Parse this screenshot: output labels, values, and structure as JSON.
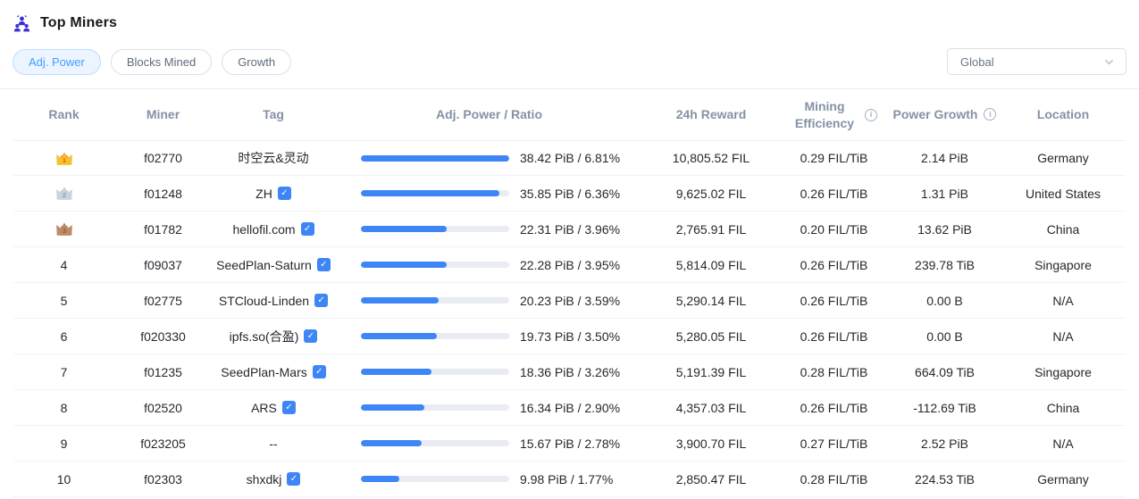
{
  "page": {
    "title": "Top Miners"
  },
  "tabs": [
    {
      "label": "Adj. Power",
      "active": true
    },
    {
      "label": "Blocks Mined",
      "active": false
    },
    {
      "label": "Growth",
      "active": false
    }
  ],
  "region_select": {
    "value": "Global"
  },
  "table": {
    "columns": {
      "rank": "Rank",
      "miner": "Miner",
      "tag": "Tag",
      "power": "Adj. Power / Ratio",
      "reward": "24h Reward",
      "efficiency": "Mining Efficiency",
      "growth": "Power Growth",
      "location": "Location"
    },
    "rows": [
      {
        "rank": 1,
        "medal": "gold",
        "miner": "f02770",
        "tag": "时空云&灵动",
        "verified": false,
        "power": "38.42 PiB / 6.81%",
        "bar_percent": 100,
        "reward": "10,805.52 FIL",
        "efficiency": "0.29 FIL/TiB",
        "growth": "2.14 PiB",
        "location": "Germany"
      },
      {
        "rank": 2,
        "medal": "silver",
        "miner": "f01248",
        "tag": "ZH",
        "verified": true,
        "power": "35.85 PiB / 6.36%",
        "bar_percent": 93.3,
        "reward": "9,625.02 FIL",
        "efficiency": "0.26 FIL/TiB",
        "growth": "1.31 PiB",
        "location": "United States"
      },
      {
        "rank": 3,
        "medal": "bronze",
        "miner": "f01782",
        "tag": "hellofil.com",
        "verified": true,
        "power": "22.31 PiB / 3.96%",
        "bar_percent": 58.1,
        "reward": "2,765.91 FIL",
        "efficiency": "0.20 FIL/TiB",
        "growth": "13.62 PiB",
        "location": "China"
      },
      {
        "rank": 4,
        "medal": null,
        "miner": "f09037",
        "tag": "SeedPlan-Saturn",
        "verified": true,
        "power": "22.28 PiB / 3.95%",
        "bar_percent": 58.0,
        "reward": "5,814.09 FIL",
        "efficiency": "0.26 FIL/TiB",
        "growth": "239.78 TiB",
        "location": "Singapore"
      },
      {
        "rank": 5,
        "medal": null,
        "miner": "f02775",
        "tag": "STCloud-Linden",
        "verified": true,
        "power": "20.23 PiB / 3.59%",
        "bar_percent": 52.7,
        "reward": "5,290.14 FIL",
        "efficiency": "0.26 FIL/TiB",
        "growth": "0.00 B",
        "location": "N/A"
      },
      {
        "rank": 6,
        "medal": null,
        "miner": "f020330",
        "tag": "ipfs.so(合盈)",
        "verified": true,
        "power": "19.73 PiB / 3.50%",
        "bar_percent": 51.4,
        "reward": "5,280.05 FIL",
        "efficiency": "0.26 FIL/TiB",
        "growth": "0.00 B",
        "location": "N/A"
      },
      {
        "rank": 7,
        "medal": null,
        "miner": "f01235",
        "tag": "SeedPlan-Mars",
        "verified": true,
        "power": "18.36 PiB / 3.26%",
        "bar_percent": 47.8,
        "reward": "5,191.39 FIL",
        "efficiency": "0.28 FIL/TiB",
        "growth": "664.09 TiB",
        "location": "Singapore"
      },
      {
        "rank": 8,
        "medal": null,
        "miner": "f02520",
        "tag": "ARS",
        "verified": true,
        "power": "16.34 PiB / 2.90%",
        "bar_percent": 42.5,
        "reward": "4,357.03 FIL",
        "efficiency": "0.26 FIL/TiB",
        "growth": "-112.69 TiB",
        "location": "China"
      },
      {
        "rank": 9,
        "medal": null,
        "miner": "f023205",
        "tag": "--",
        "verified": false,
        "power": "15.67 PiB / 2.78%",
        "bar_percent": 40.8,
        "reward": "3,900.70 FIL",
        "efficiency": "0.27 FIL/TiB",
        "growth": "2.52 PiB",
        "location": "N/A"
      },
      {
        "rank": 10,
        "medal": null,
        "miner": "f02303",
        "tag": "shxdkj",
        "verified": true,
        "power": "9.98 PiB / 1.77%",
        "bar_percent": 26.0,
        "reward": "2,850.47 FIL",
        "efficiency": "0.28 FIL/TiB",
        "growth": "224.53 TiB",
        "location": "Germany"
      }
    ]
  },
  "icons": {
    "title_icon": "miners-group-icon",
    "verified_check": "✓",
    "info_glyph": "i"
  },
  "colors": {
    "accent": "#3e86f5",
    "bar_track": "#e9ecf2",
    "tab_active_text": "#409eff",
    "tab_active_bg": "#ecf5ff",
    "title_icon": "#3a2fd5",
    "medals": {
      "gold": {
        "body": "#f5c12c",
        "band": "#ef5d2e",
        "num": "#e2641f"
      },
      "silver": {
        "body": "#c7d4e1",
        "band": "#a9bccd",
        "num": "#8da3b8"
      },
      "bronze": {
        "body": "#c08a67",
        "band": "#a96f4e",
        "num": "#8f5c41"
      }
    }
  }
}
